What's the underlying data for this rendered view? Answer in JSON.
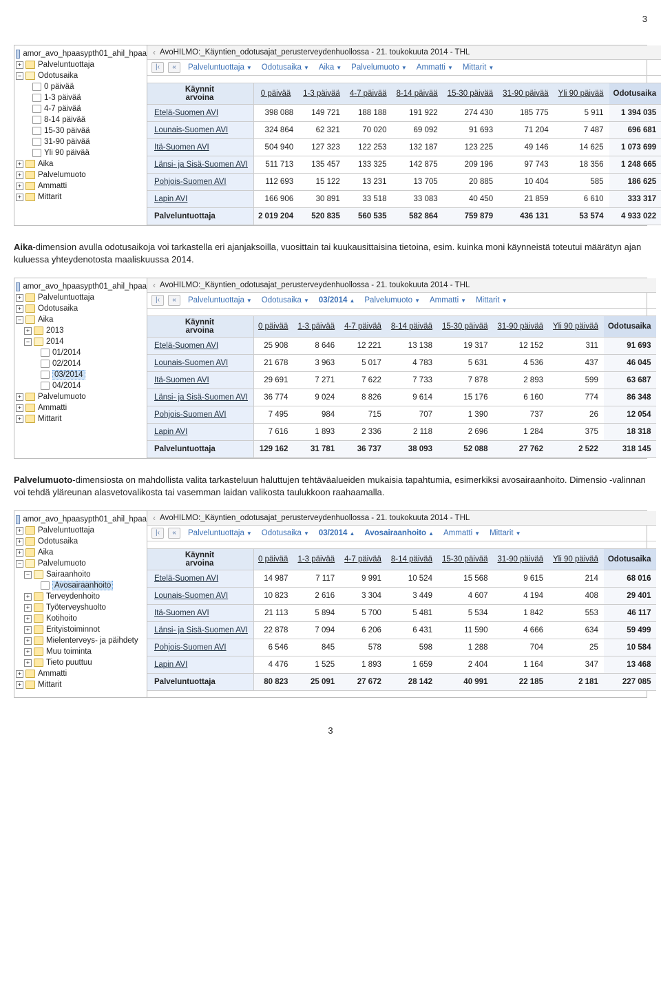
{
  "page_number_top": "3",
  "page_number_bottom": "3",
  "para1": {
    "bold": "Aika",
    "rest": "-dimension avulla odotusaikoja voi tarkastella eri ajanjaksoilla, vuosittain tai kuukausittaisina tietoina, esim. kuinka moni käynneistä toteutui määrätyn ajan kuluessa yhteydenotosta maaliskuussa 2014."
  },
  "para2": {
    "bold": "Palvelumuoto",
    "rest": "-dimensiosta on mahdollista valita tarkasteluun haluttujen tehtäväalueiden mukaisia tapahtumia, esimerkiksi avosairaanhoito. Dimensio -valinnan voi tehdä yläreunan alasvetovalikosta tai vasemman laidan valikosta taulukkoon raahaamalla."
  },
  "widget_title": "AvoHILMO:_Käyntien_odotusajat_perusterveydenhuollossa - 21. toukokuuta 2014 - THL",
  "cube_label": "amor_avo_hpaasypth01_ahil_hpaa",
  "headers": {
    "corner1": "Käynnit",
    "corner2": "arvoina",
    "c1": "0 päivää",
    "c2": "1-3 päivää",
    "c3": "4-7 päivää",
    "c4": "8-14 päivää",
    "c5": "15-30 päivää",
    "c6": "31-90 päivää",
    "c7": "Yli 90 päivää",
    "c8": "Odotusaika"
  },
  "rows_labels": {
    "r1": "Etelä-Suomen AVI",
    "r2": "Lounais-Suomen AVI",
    "r3": "Itä-Suomen AVI",
    "r4": "Länsi- ja Sisä-Suomen AVI",
    "r5": "Pohjois-Suomen AVI",
    "r6": "Lapin AVI",
    "total": "Palveluntuottaja"
  },
  "tree1": {
    "n1": "Palveluntuottaja",
    "n2": "Odotusaika",
    "n2a": "0 päivää",
    "n2b": "1-3 päivää",
    "n2c": "4-7 päivää",
    "n2d": "8-14 päivää",
    "n2e": "15-30 päivää",
    "n2f": "31-90 päivää",
    "n2g": "Yli 90 päivää",
    "n3": "Aika",
    "n4": "Palvelumuoto",
    "n5": "Ammatti",
    "n6": "Mittarit"
  },
  "tree2": {
    "n1": "Palveluntuottaja",
    "n2": "Odotusaika",
    "n3": "Aika",
    "n3a": "2013",
    "n3b": "2014",
    "n3b1": "01/2014",
    "n3b2": "02/2014",
    "n3b3": "03/2014",
    "n3b4": "04/2014",
    "n4": "Palvelumuoto",
    "n5": "Ammatti",
    "n6": "Mittarit"
  },
  "tree3": {
    "n1": "Palveluntuottaja",
    "n2": "Odotusaika",
    "n3": "Aika",
    "n4": "Palvelumuoto",
    "n4a": "Sairaanhoito",
    "n4a1": "Avosairaanhoito",
    "n4b": "Terveydenhoito",
    "n4c": "Työterveyshuolto",
    "n4d": "Kotihoito",
    "n4e": "Erityistoiminnot",
    "n4f": "Mielenterveys- ja päihdety",
    "n4g": "Muu toiminta",
    "n4h": "Tieto puuttuu",
    "n5": "Ammatti",
    "n6": "Mittarit"
  },
  "crumb": {
    "palveluntuottaja": "Palveluntuottaja",
    "odotusaika": "Odotusaika",
    "aika": "Aika",
    "palvelumuoto": "Palvelumuoto",
    "ammatti": "Ammatti",
    "mittarit": "Mittarit",
    "m03_2014": "03/2014",
    "avosairaanhoito": "Avosairaanhoito"
  },
  "w1": {
    "r1": [
      "398 088",
      "149 721",
      "188 188",
      "191 922",
      "274 430",
      "185 775",
      "5 911",
      "1 394 035"
    ],
    "r2": [
      "324 864",
      "62 321",
      "70 020",
      "69 092",
      "91 693",
      "71 204",
      "7 487",
      "696 681"
    ],
    "r3": [
      "504 940",
      "127 323",
      "122 253",
      "132 187",
      "123 225",
      "49 146",
      "14 625",
      "1 073 699"
    ],
    "r4": [
      "511 713",
      "135 457",
      "133 325",
      "142 875",
      "209 196",
      "97 743",
      "18 356",
      "1 248 665"
    ],
    "r5": [
      "112 693",
      "15 122",
      "13 231",
      "13 705",
      "20 885",
      "10 404",
      "585",
      "186 625"
    ],
    "r6": [
      "166 906",
      "30 891",
      "33 518",
      "33 083",
      "40 450",
      "21 859",
      "6 610",
      "333 317"
    ],
    "tot": [
      "2 019 204",
      "520 835",
      "560 535",
      "582 864",
      "759 879",
      "436 131",
      "53 574",
      "4 933 022"
    ]
  },
  "w2": {
    "r1": [
      "25 908",
      "8 646",
      "12 221",
      "13 138",
      "19 317",
      "12 152",
      "311",
      "91 693"
    ],
    "r2": [
      "21 678",
      "3 963",
      "5 017",
      "4 783",
      "5 631",
      "4 536",
      "437",
      "46 045"
    ],
    "r3": [
      "29 691",
      "7 271",
      "7 622",
      "7 733",
      "7 878",
      "2 893",
      "599",
      "63 687"
    ],
    "r4": [
      "36 774",
      "9 024",
      "8 826",
      "9 614",
      "15 176",
      "6 160",
      "774",
      "86 348"
    ],
    "r5": [
      "7 495",
      "984",
      "715",
      "707",
      "1 390",
      "737",
      "26",
      "12 054"
    ],
    "r6": [
      "7 616",
      "1 893",
      "2 336",
      "2 118",
      "2 696",
      "1 284",
      "375",
      "18 318"
    ],
    "tot": [
      "129 162",
      "31 781",
      "36 737",
      "38 093",
      "52 088",
      "27 762",
      "2 522",
      "318 145"
    ]
  },
  "w3": {
    "r1": [
      "14 987",
      "7 117",
      "9 991",
      "10 524",
      "15 568",
      "9 615",
      "214",
      "68 016"
    ],
    "r2": [
      "10 823",
      "2 616",
      "3 304",
      "3 449",
      "4 607",
      "4 194",
      "408",
      "29 401"
    ],
    "r3": [
      "21 113",
      "5 894",
      "5 700",
      "5 481",
      "5 534",
      "1 842",
      "553",
      "46 117"
    ],
    "r4": [
      "22 878",
      "7 094",
      "6 206",
      "6 431",
      "11 590",
      "4 666",
      "634",
      "59 499"
    ],
    "r5": [
      "6 546",
      "845",
      "578",
      "598",
      "1 288",
      "704",
      "25",
      "10 584"
    ],
    "r6": [
      "4 476",
      "1 525",
      "1 893",
      "1 659",
      "2 404",
      "1 164",
      "347",
      "13 468"
    ],
    "tot": [
      "80 823",
      "25 091",
      "27 672",
      "28 142",
      "40 991",
      "22 185",
      "2 181",
      "227 085"
    ]
  }
}
